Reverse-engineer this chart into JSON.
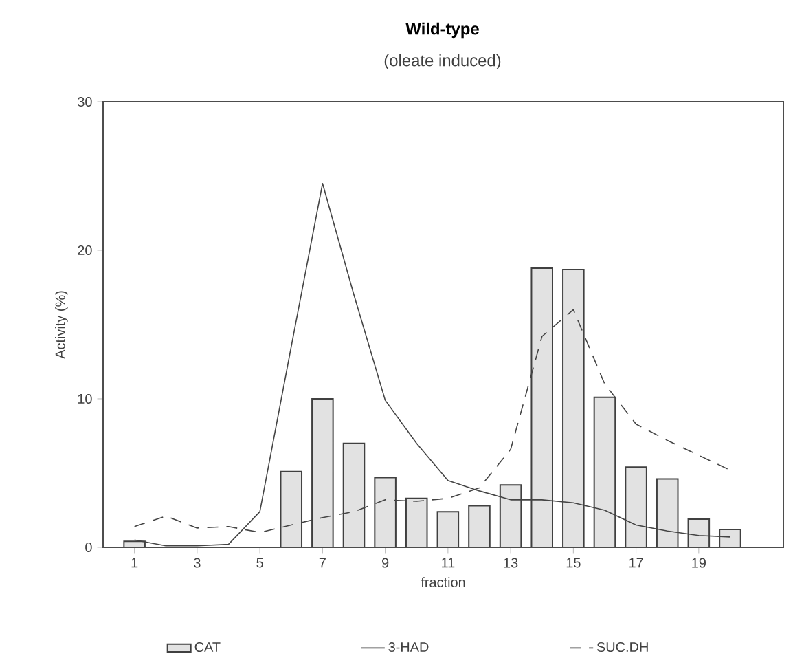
{
  "chart_data": {
    "type": "bar",
    "title": "Wild-type",
    "subtitle": "(oleate induced)",
    "xlabel": "fraction",
    "ylabel": "Activity (%)",
    "x": [
      1,
      2,
      3,
      4,
      5,
      6,
      7,
      8,
      9,
      10,
      11,
      12,
      13,
      14,
      15,
      16,
      17,
      18,
      19,
      20
    ],
    "series": [
      {
        "name": "CAT",
        "color": "#e2e2e2",
        "values": [
          0.4,
          null,
          null,
          null,
          null,
          5.1,
          10,
          7.0,
          4.7,
          3.3,
          2.4,
          2.8,
          4.2,
          18.8,
          18.7,
          10.1,
          5.4,
          4.6,
          1.9,
          1.2
        ]
      },
      {
        "name": "3-HAD",
        "type": "line",
        "color": "#444444",
        "line_style": "solid",
        "values": [
          0.5,
          0.1,
          0.1,
          0.2,
          2.4,
          13.5,
          24.5,
          17,
          9.9,
          7,
          4.5,
          3.8,
          3.2,
          3.2,
          3.0,
          2.5,
          1.5,
          1.1,
          0.8,
          0.7
        ]
      },
      {
        "name": "SUC.DH",
        "type": "line",
        "color": "#444444",
        "line_style": "dashed",
        "values": [
          1.4,
          2.1,
          1.3,
          1.4,
          1.0,
          1.5,
          2.0,
          2.4,
          3.2,
          3.1,
          3.3,
          4.0,
          6.6,
          14.2,
          16.0,
          11,
          8.3,
          7.2,
          6.2,
          5.2
        ]
      }
    ],
    "xlim": [
      0,
      21.7
    ],
    "ylim": [
      0,
      30
    ],
    "xticks": [
      1,
      3,
      5,
      7,
      9,
      11,
      13,
      15,
      17,
      19
    ],
    "yticks": [
      0,
      10,
      20,
      30
    ],
    "grid": false,
    "legend": "bottom",
    "marker": "none"
  }
}
